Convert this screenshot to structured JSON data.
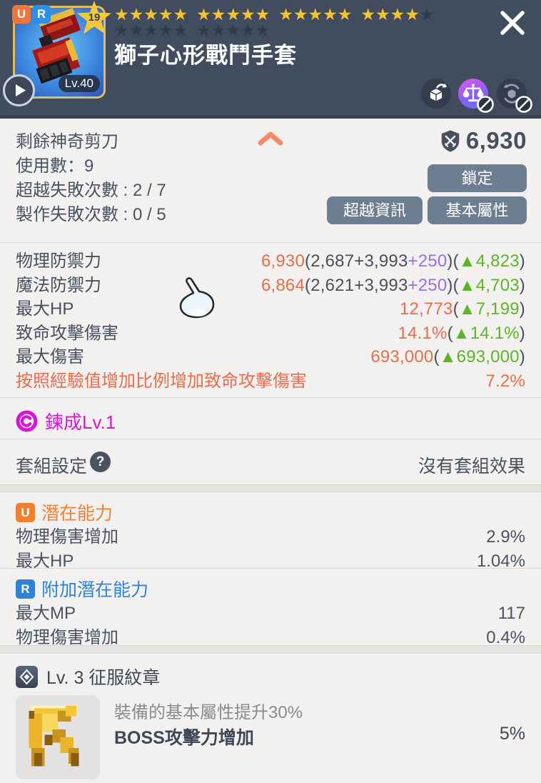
{
  "colors": {
    "header_bg": "#414c5e",
    "panel_bg": "#f2f1ef",
    "accent_orange": "#e96c4c",
    "accent_purple": "#9a6fe0",
    "accent_green": "#5cb526",
    "forge_magenta": "#d816d8",
    "potential_orange": "#f0802f",
    "potential_blue": "#2f82d8",
    "button_slate": "#6e7e91",
    "star_gold": "#f6c332",
    "star_dim": "#313a49"
  },
  "header": {
    "badge_u": "U",
    "badge_r": "R",
    "star_badge": "19",
    "level_label": "Lv.40",
    "title": "獅子心形戰鬥手套",
    "stars": {
      "row1_total": 20,
      "row1_gold": 19,
      "row2_total": 10,
      "row2_gold": 0,
      "group_size": 5
    },
    "icons": [
      "play-icon",
      "close-icon",
      "unequip-box-icon",
      "trade-scales-icon",
      "dismantle-recycle-icon"
    ]
  },
  "info": {
    "lines": [
      "剩餘神奇剪刀",
      "使用數：9",
      "超越失敗次數 : 2 / 7",
      "製作失敗次數 : 0 / 5"
    ],
    "power": "6,930",
    "buttons": {
      "lock": "鎖定",
      "transcend": "超越資訊",
      "basic": "基本屬性"
    }
  },
  "stats": {
    "rows": [
      {
        "label": "物理防禦力",
        "cls": "dark",
        "value": [
          {
            "t": "6,930",
            "c": "orange"
          },
          {
            "t": "(2,687+3,993",
            "c": "dark"
          },
          {
            "t": "+250",
            "c": "purple"
          },
          {
            "t": ")(",
            "c": "dark"
          },
          {
            "t": "▲4,823",
            "c": "green"
          },
          {
            "t": ")",
            "c": "dark"
          }
        ]
      },
      {
        "label": "魔法防禦力",
        "cls": "dark",
        "value": [
          {
            "t": "6,864",
            "c": "orange"
          },
          {
            "t": "(2,621+3,993",
            "c": "dark"
          },
          {
            "t": "+250",
            "c": "purple"
          },
          {
            "t": ")(",
            "c": "dark"
          },
          {
            "t": "▲4,703",
            "c": "green"
          },
          {
            "t": ")",
            "c": "dark"
          }
        ]
      },
      {
        "label": "最大HP",
        "cls": "dark",
        "value": [
          {
            "t": "12,773",
            "c": "orange"
          },
          {
            "t": "(",
            "c": "dark"
          },
          {
            "t": "▲7,199",
            "c": "green"
          },
          {
            "t": ")",
            "c": "dark"
          }
        ]
      },
      {
        "label": "致命攻擊傷害",
        "cls": "dark",
        "value": [
          {
            "t": "14.1%",
            "c": "orange"
          },
          {
            "t": "(",
            "c": "dark"
          },
          {
            "t": "▲14.1%",
            "c": "green"
          },
          {
            "t": ")",
            "c": "dark"
          }
        ]
      },
      {
        "label": "最大傷害",
        "cls": "dark",
        "value": [
          {
            "t": "693,000",
            "c": "orange"
          },
          {
            "t": "(",
            "c": "dark"
          },
          {
            "t": "▲693,000",
            "c": "green"
          },
          {
            "t": ")",
            "c": "dark"
          }
        ]
      },
      {
        "label": "按照經驗值增加比例增加致命攻擊傷害",
        "cls": "orange",
        "value": [
          {
            "t": "7.2%",
            "c": "orange"
          }
        ]
      }
    ]
  },
  "forge": {
    "label": "鍊成Lv.1"
  },
  "set": {
    "label": "套組設定",
    "help": "?",
    "value": "沒有套組效果"
  },
  "u_potential": {
    "badge": "U",
    "title": "潛在能力",
    "rows": [
      {
        "label": "物理傷害增加",
        "value": "2.9%"
      },
      {
        "label": "最大HP",
        "value": "1.04%"
      }
    ]
  },
  "r_potential": {
    "badge": "R",
    "title": "附加潛在能力",
    "rows": [
      {
        "label": "最大MP",
        "value": "117"
      },
      {
        "label": "物理傷害增加",
        "value": "0.4%"
      }
    ]
  },
  "emblem": {
    "title": "Lv. 3 征服紋章",
    "desc": "裝備的基本屬性提升30%",
    "effect": "BOSS攻擊力增加",
    "value": "5%"
  }
}
